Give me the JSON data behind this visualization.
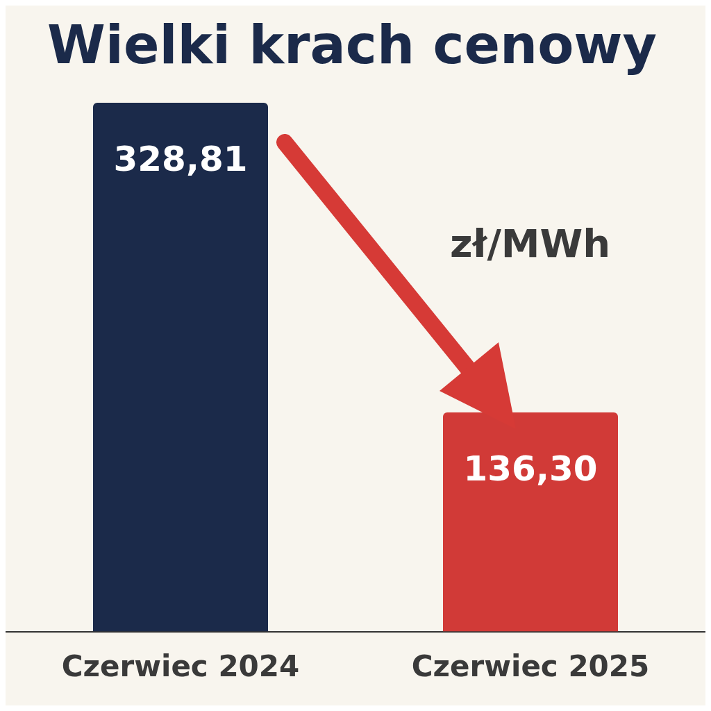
{
  "chart_data": {
    "type": "bar",
    "title": "Wielki krach cenowy",
    "categories": [
      "Czerwiec 2024",
      "Czerwiec 2025"
    ],
    "values": [
      328.81,
      136.3
    ],
    "colors": [
      "#1b2a4a",
      "#d13a37"
    ],
    "value_labels": [
      "328,81",
      "136,30"
    ],
    "annotations": [
      "zł/MWh"
    ],
    "grid": false
  }
}
